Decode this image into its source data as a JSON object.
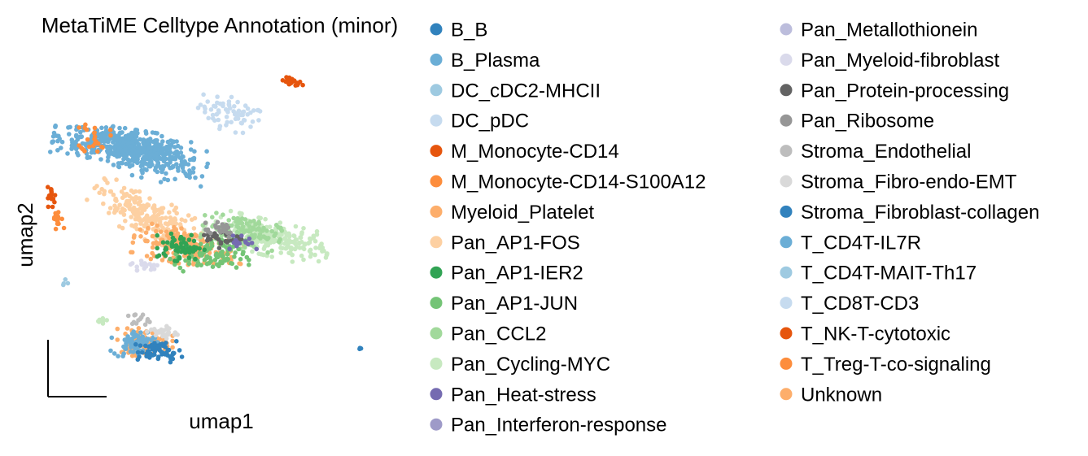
{
  "chart_data": {
    "type": "scatter",
    "title": "MetaTiME Celltype Annotation (minor)",
    "xlabel": "umap1",
    "ylabel": "umap2",
    "grid": false,
    "legend_placement": "right",
    "categories": [
      {
        "name": "B_B",
        "color": "#3182bd"
      },
      {
        "name": "B_Plasma",
        "color": "#6baed6"
      },
      {
        "name": "DC_cDC2-MHCII",
        "color": "#9ecae1"
      },
      {
        "name": "DC_pDC",
        "color": "#c6dbef"
      },
      {
        "name": "M_Monocyte-CD14",
        "color": "#e6550d"
      },
      {
        "name": "M_Monocyte-CD14-S100A12",
        "color": "#fd8d3c"
      },
      {
        "name": "Myeloid_Platelet",
        "color": "#fdae6b"
      },
      {
        "name": "Pan_AP1-FOS",
        "color": "#fdd0a2"
      },
      {
        "name": "Pan_AP1-IER2",
        "color": "#31a354"
      },
      {
        "name": "Pan_AP1-JUN",
        "color": "#74c476"
      },
      {
        "name": "Pan_CCL2",
        "color": "#a1d99b"
      },
      {
        "name": "Pan_Cycling-MYC",
        "color": "#c7e9c0"
      },
      {
        "name": "Pan_Heat-stress",
        "color": "#756bb1"
      },
      {
        "name": "Pan_Interferon-response",
        "color": "#9e9ac8"
      },
      {
        "name": "Pan_Metallothionein",
        "color": "#bcbddc"
      },
      {
        "name": "Pan_Myeloid-fibroblast",
        "color": "#dadaeb"
      },
      {
        "name": "Pan_Protein-processing",
        "color": "#636363"
      },
      {
        "name": "Pan_Ribosome",
        "color": "#969696"
      },
      {
        "name": "Stroma_Endothelial",
        "color": "#bdbdbd"
      },
      {
        "name": "Stroma_Fibro-endo-EMT",
        "color": "#d9d9d9"
      },
      {
        "name": "Stroma_Fibroblast-collagen",
        "color": "#3182bd"
      },
      {
        "name": "T_CD4T-IL7R",
        "color": "#6baed6"
      },
      {
        "name": "T_CD4T-MAIT-Th17",
        "color": "#9ecae1"
      },
      {
        "name": "T_CD8T-CD3",
        "color": "#c6dbef"
      },
      {
        "name": "T_NK-T-cytotoxic",
        "color": "#e6550d"
      },
      {
        "name": "T_Treg-T-co-signaling",
        "color": "#fd8d3c"
      },
      {
        "name": "Unknown",
        "color": "#fdae6b"
      }
    ],
    "clusters": [
      {
        "category": "DC_pDC",
        "x": 0.52,
        "y": 0.82,
        "rx": 0.09,
        "ry": 0.05,
        "angle": -20,
        "n": 70
      },
      {
        "category": "M_Monocyte-CD14",
        "x": 0.69,
        "y": 0.92,
        "rx": 0.03,
        "ry": 0.012,
        "angle": -10,
        "n": 30
      },
      {
        "category": "B_Plasma",
        "x": 0.22,
        "y": 0.72,
        "rx": 0.18,
        "ry": 0.05,
        "angle": -10,
        "n": 420
      },
      {
        "category": "T_CD4T-IL7R",
        "x": 0.3,
        "y": 0.68,
        "rx": 0.14,
        "ry": 0.06,
        "angle": -15,
        "n": 180
      },
      {
        "category": "M_Monocyte-CD14-S100A12",
        "x": 0.14,
        "y": 0.75,
        "rx": 0.04,
        "ry": 0.05,
        "angle": 0,
        "n": 25
      },
      {
        "category": "Pan_AP1-FOS",
        "x": 0.28,
        "y": 0.5,
        "rx": 0.15,
        "ry": 0.06,
        "angle": -30,
        "n": 220
      },
      {
        "category": "Myeloid_Platelet",
        "x": 0.4,
        "y": 0.4,
        "rx": 0.14,
        "ry": 0.05,
        "angle": -10,
        "n": 180
      },
      {
        "category": "Pan_Cycling-MYC",
        "x": 0.62,
        "y": 0.43,
        "rx": 0.16,
        "ry": 0.05,
        "angle": -15,
        "n": 260
      },
      {
        "category": "Pan_CCL2",
        "x": 0.55,
        "y": 0.45,
        "rx": 0.1,
        "ry": 0.05,
        "angle": -10,
        "n": 120
      },
      {
        "category": "Pan_AP1-JUN",
        "x": 0.46,
        "y": 0.37,
        "rx": 0.1,
        "ry": 0.05,
        "angle": 0,
        "n": 100
      },
      {
        "category": "Pan_AP1-IER2",
        "x": 0.38,
        "y": 0.4,
        "rx": 0.06,
        "ry": 0.04,
        "angle": 0,
        "n": 60
      },
      {
        "category": "Pan_Protein-processing",
        "x": 0.5,
        "y": 0.43,
        "rx": 0.05,
        "ry": 0.03,
        "angle": 0,
        "n": 30
      },
      {
        "category": "Pan_Ribosome",
        "x": 0.48,
        "y": 0.46,
        "rx": 0.06,
        "ry": 0.03,
        "angle": 0,
        "n": 25
      },
      {
        "category": "Pan_Heat-stress",
        "x": 0.55,
        "y": 0.42,
        "rx": 0.06,
        "ry": 0.03,
        "angle": 0,
        "n": 15
      },
      {
        "category": "Pan_Myeloid-fibroblast",
        "x": 0.28,
        "y": 0.34,
        "rx": 0.04,
        "ry": 0.02,
        "angle": 0,
        "n": 20
      },
      {
        "category": "M_Monocyte-CD14",
        "x": 0.02,
        "y": 0.56,
        "rx": 0.012,
        "ry": 0.03,
        "angle": 0,
        "n": 18
      },
      {
        "category": "M_Monocyte-CD14-S100A12",
        "x": 0.035,
        "y": 0.49,
        "rx": 0.012,
        "ry": 0.03,
        "angle": 10,
        "n": 18
      },
      {
        "category": "DC_cDC2-MHCII",
        "x": 0.06,
        "y": 0.28,
        "rx": 0.01,
        "ry": 0.02,
        "angle": 0,
        "n": 4
      },
      {
        "category": "Myeloid_Platelet",
        "x": 0.28,
        "y": 0.1,
        "rx": 0.07,
        "ry": 0.04,
        "angle": 0,
        "n": 120
      },
      {
        "category": "T_CD4T-IL7R",
        "x": 0.25,
        "y": 0.1,
        "rx": 0.06,
        "ry": 0.04,
        "angle": 0,
        "n": 70
      },
      {
        "category": "B_B",
        "x": 0.32,
        "y": 0.07,
        "rx": 0.06,
        "ry": 0.03,
        "angle": 0,
        "n": 60
      },
      {
        "category": "Stroma_Fibro-endo-EMT",
        "x": 0.33,
        "y": 0.13,
        "rx": 0.04,
        "ry": 0.02,
        "angle": 0,
        "n": 30
      },
      {
        "category": "Stroma_Endothelial",
        "x": 0.26,
        "y": 0.17,
        "rx": 0.03,
        "ry": 0.02,
        "angle": 0,
        "n": 15
      },
      {
        "category": "Pan_Cycling-MYC",
        "x": 0.16,
        "y": 0.17,
        "rx": 0.02,
        "ry": 0.01,
        "angle": 0,
        "n": 8
      },
      {
        "category": "B_B",
        "x": 0.88,
        "y": 0.08,
        "rx": 0.003,
        "ry": 0.006,
        "angle": 0,
        "n": 3
      }
    ]
  }
}
